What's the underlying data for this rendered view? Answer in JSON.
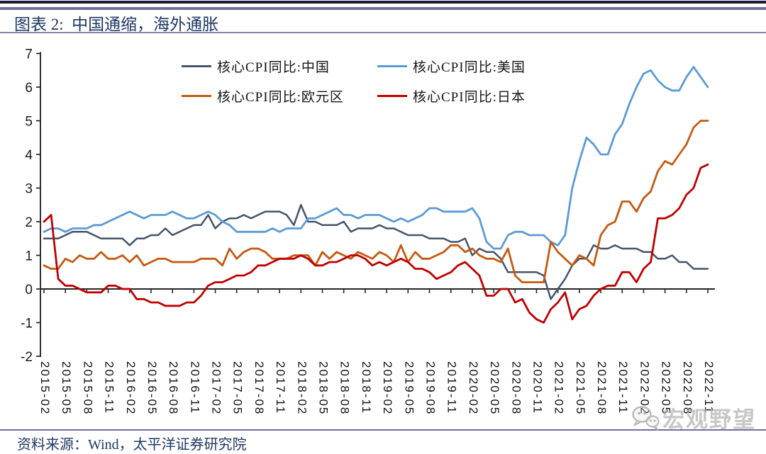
{
  "header": {
    "title": "图表 2:  中国通缩，海外通胀"
  },
  "footer": {
    "source": "资料来源：Wind，太平洋证券研究院"
  },
  "watermark": {
    "text": "宏观野望",
    "icon": "wechat-chat-bubbles-icon"
  },
  "legend": {
    "items": [
      {
        "label": "核心CPI同比:中国",
        "color": "#44546A"
      },
      {
        "label": "核心CPI同比:美国",
        "color": "#5B9BD5"
      },
      {
        "label": "核心CPI同比:欧元区",
        "color": "#C55A11"
      },
      {
        "label": "核心CPI同比:日本",
        "color": "#C00000"
      }
    ]
  },
  "chart_data": {
    "type": "line",
    "title": "图表 2: 中国通缩，海外通胀",
    "x_start": "2015-02",
    "x_end": "2022-11",
    "x_interval": "monthly",
    "x_tick_labels": [
      "2015-02",
      "2015-05",
      "2015-08",
      "2015-11",
      "2016-02",
      "2016-05",
      "2016-08",
      "2016-11",
      "2017-02",
      "2017-05",
      "2017-08",
      "2017-11",
      "2018-02",
      "2018-05",
      "2018-08",
      "2018-11",
      "2019-02",
      "2019-05",
      "2019-08",
      "2019-11",
      "2020-02",
      "2020-05",
      "2020-08",
      "2020-11",
      "2021-02",
      "2021-05",
      "2021-08",
      "2021-11",
      "2022-02",
      "2022-05",
      "2022-08",
      "2022-11"
    ],
    "ylim": [
      -2,
      7
    ],
    "y_ticks": [
      7,
      6,
      5,
      4,
      3,
      2,
      1,
      0,
      -1,
      -2
    ],
    "grid": false,
    "legend_position": "top-inside",
    "unit": "%",
    "series": [
      {
        "name": "核心CPI同比:中国",
        "color": "#44546A",
        "width": 2.5,
        "values": [
          1.5,
          1.5,
          1.5,
          1.6,
          1.7,
          1.7,
          1.7,
          1.6,
          1.5,
          1.5,
          1.5,
          1.5,
          1.3,
          1.5,
          1.5,
          1.6,
          1.6,
          1.8,
          1.6,
          1.7,
          1.8,
          1.9,
          1.9,
          2.2,
          1.8,
          2.0,
          2.1,
          2.1,
          2.2,
          2.1,
          2.2,
          2.3,
          2.3,
          2.3,
          2.2,
          1.9,
          2.5,
          2.0,
          2.0,
          1.9,
          1.9,
          1.9,
          2.0,
          1.7,
          1.8,
          1.8,
          1.8,
          1.9,
          1.8,
          1.8,
          1.7,
          1.6,
          1.6,
          1.6,
          1.5,
          1.5,
          1.5,
          1.4,
          1.4,
          1.5,
          1.0,
          1.2,
          1.1,
          1.1,
          0.9,
          0.5,
          0.5,
          0.5,
          0.5,
          0.5,
          0.4,
          -0.3,
          0.0,
          0.3,
          0.7,
          0.9,
          0.9,
          1.3,
          1.2,
          1.2,
          1.3,
          1.2,
          1.2,
          1.2,
          1.1,
          1.1,
          0.9,
          0.9,
          1.0,
          0.8,
          0.8,
          0.6,
          0.6,
          0.6
        ]
      },
      {
        "name": "核心CPI同比:美国",
        "color": "#5B9BD5",
        "width": 2.8,
        "values": [
          1.7,
          1.8,
          1.8,
          1.7,
          1.8,
          1.8,
          1.8,
          1.9,
          1.9,
          2.0,
          2.1,
          2.2,
          2.3,
          2.2,
          2.1,
          2.2,
          2.2,
          2.2,
          2.3,
          2.2,
          2.1,
          2.1,
          2.2,
          2.3,
          2.2,
          2.0,
          1.9,
          1.7,
          1.7,
          1.7,
          1.7,
          1.7,
          1.8,
          1.7,
          1.8,
          1.8,
          1.8,
          2.1,
          2.1,
          2.2,
          2.3,
          2.4,
          2.2,
          2.2,
          2.1,
          2.2,
          2.2,
          2.2,
          2.1,
          2.0,
          2.1,
          2.0,
          2.1,
          2.2,
          2.4,
          2.4,
          2.3,
          2.3,
          2.3,
          2.3,
          2.4,
          2.1,
          1.4,
          1.2,
          1.2,
          1.6,
          1.7,
          1.7,
          1.6,
          1.6,
          1.6,
          1.4,
          1.3,
          1.6,
          3.0,
          3.8,
          4.5,
          4.3,
          4.0,
          4.0,
          4.6,
          4.9,
          5.5,
          6.0,
          6.4,
          6.5,
          6.2,
          6.0,
          5.9,
          5.9,
          6.3,
          6.6,
          6.3,
          6.0
        ]
      },
      {
        "name": "核心CPI同比:欧元区",
        "color": "#C55A11",
        "width": 2.8,
        "values": [
          0.7,
          0.6,
          0.6,
          0.9,
          0.8,
          1.0,
          0.9,
          0.9,
          1.1,
          0.9,
          0.9,
          1.0,
          0.8,
          1.0,
          0.7,
          0.8,
          0.9,
          0.9,
          0.8,
          0.8,
          0.8,
          0.8,
          0.9,
          0.9,
          0.9,
          0.7,
          1.2,
          0.9,
          1.1,
          1.2,
          1.2,
          1.1,
          0.9,
          0.9,
          0.9,
          1.0,
          1.0,
          1.0,
          0.7,
          1.1,
          0.9,
          1.1,
          1.0,
          0.9,
          1.1,
          1.0,
          0.9,
          1.1,
          1.0,
          0.8,
          1.3,
          0.8,
          1.1,
          0.9,
          0.9,
          1.0,
          1.1,
          1.3,
          1.3,
          1.1,
          1.2,
          1.0,
          0.9,
          0.9,
          0.8,
          1.2,
          0.4,
          0.2,
          0.2,
          0.2,
          0.2,
          1.4,
          1.1,
          0.9,
          0.7,
          1.0,
          0.9,
          0.7,
          1.6,
          1.9,
          2.0,
          2.6,
          2.6,
          2.3,
          2.7,
          2.9,
          3.5,
          3.8,
          3.7,
          4.0,
          4.3,
          4.8,
          5.0,
          5.0
        ]
      },
      {
        "name": "核心CPI同比:日本",
        "color": "#C00000",
        "width": 2.8,
        "values": [
          2.0,
          2.2,
          0.3,
          0.1,
          0.1,
          0.0,
          -0.1,
          -0.1,
          -0.1,
          0.1,
          0.1,
          0.0,
          0.0,
          -0.3,
          -0.3,
          -0.4,
          -0.4,
          -0.5,
          -0.5,
          -0.5,
          -0.4,
          -0.4,
          -0.2,
          0.1,
          0.2,
          0.2,
          0.3,
          0.4,
          0.4,
          0.5,
          0.7,
          0.7,
          0.8,
          0.9,
          0.9,
          0.9,
          1.0,
          0.9,
          0.7,
          0.7,
          0.8,
          0.8,
          0.9,
          1.0,
          1.0,
          0.9,
          0.7,
          0.8,
          0.7,
          0.8,
          0.9,
          0.8,
          0.6,
          0.6,
          0.5,
          0.3,
          0.4,
          0.5,
          0.7,
          0.8,
          0.6,
          0.4,
          -0.2,
          -0.2,
          0.0,
          0.0,
          -0.4,
          -0.3,
          -0.7,
          -0.9,
          -1.0,
          -0.6,
          -0.4,
          -0.1,
          -0.9,
          -0.6,
          -0.5,
          -0.2,
          0.0,
          0.1,
          0.1,
          0.5,
          0.5,
          0.2,
          0.6,
          0.8,
          2.1,
          2.1,
          2.2,
          2.4,
          2.8,
          3.0,
          3.6,
          3.7
        ]
      }
    ]
  }
}
